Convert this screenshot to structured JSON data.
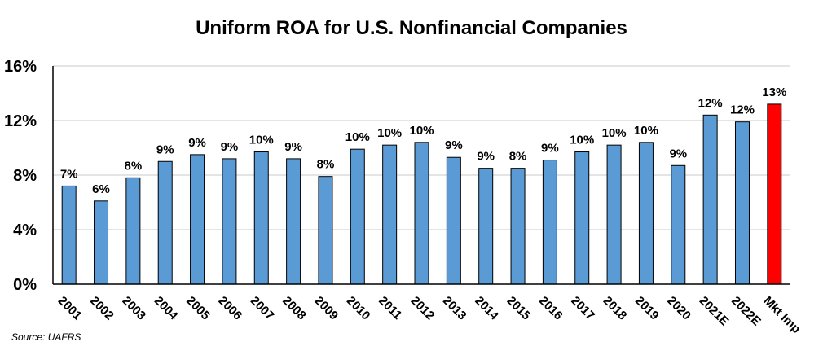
{
  "chart_data": {
    "type": "bar",
    "title": "Uniform ROA for U.S. Nonfinancial Companies",
    "xlabel": "",
    "ylabel": "",
    "ylim": [
      0,
      16
    ],
    "yticks": [
      "0%",
      "4%",
      "8%",
      "12%",
      "16%"
    ],
    "ytick_values": [
      0,
      4,
      8,
      12,
      16
    ],
    "categories": [
      "2001",
      "2002",
      "2003",
      "2004",
      "2005",
      "2006",
      "2007",
      "2008",
      "2009",
      "2010",
      "2011",
      "2012",
      "2013",
      "2014",
      "2015",
      "2016",
      "2017",
      "2018",
      "2019",
      "2020",
      "2021E",
      "2022E",
      "Mkt Imp"
    ],
    "values": [
      7.2,
      6.1,
      7.8,
      9.0,
      9.5,
      9.2,
      9.7,
      9.2,
      7.9,
      9.9,
      10.2,
      10.4,
      9.3,
      8.5,
      8.5,
      9.1,
      9.7,
      10.2,
      10.4,
      8.7,
      12.4,
      11.9,
      13.2
    ],
    "data_labels": [
      "7%",
      "6%",
      "8%",
      "9%",
      "9%",
      "9%",
      "10%",
      "9%",
      "8%",
      "10%",
      "10%",
      "10%",
      "9%",
      "9%",
      "8%",
      "9%",
      "10%",
      "10%",
      "10%",
      "9%",
      "12%",
      "12%",
      "13%"
    ],
    "bar_color": "#5b9bd5",
    "highlight_color": "#ff0000",
    "highlight_category": "Mkt Imp",
    "grid": "horizontal",
    "legend": "none"
  },
  "source": "Source: UAFRS"
}
